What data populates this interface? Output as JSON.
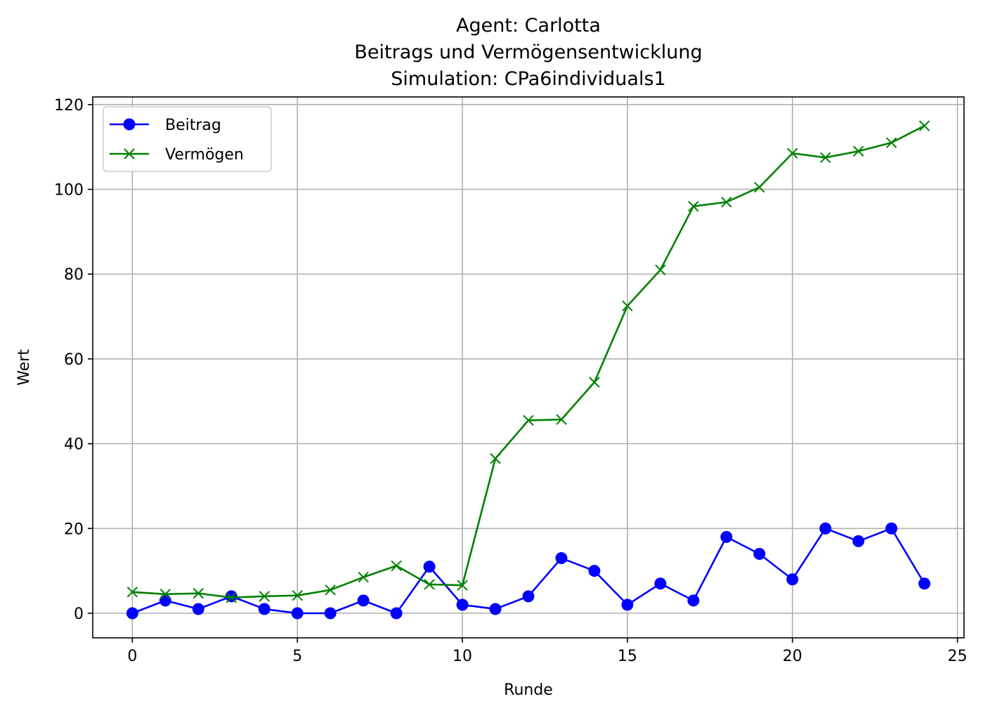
{
  "chart_data": {
    "type": "line",
    "title_lines": [
      "Agent: Carlotta",
      "Beitrags und Vermögensentwicklung",
      "Simulation: CPa6individuals1"
    ],
    "xlabel": "Runde",
    "ylabel": "Wert",
    "xlim": [
      -1.2,
      25.2
    ],
    "ylim": [
      -5.8,
      121.8
    ],
    "xticks": [
      0,
      5,
      10,
      15,
      20,
      25
    ],
    "yticks": [
      0,
      20,
      40,
      60,
      80,
      100,
      120
    ],
    "grid": true,
    "legend_position": "top-left",
    "x": [
      0,
      1,
      2,
      3,
      4,
      5,
      6,
      7,
      8,
      9,
      10,
      11,
      12,
      13,
      14,
      15,
      16,
      17,
      18,
      19,
      20,
      21,
      22,
      23,
      24
    ],
    "series": [
      {
        "name": "Beitrag",
        "color": "#0000ff",
        "marker": "circle",
        "values": [
          0,
          3,
          1,
          4,
          1,
          0,
          0,
          3,
          0,
          11,
          2,
          1,
          4,
          13,
          10,
          2,
          7,
          3,
          18,
          14,
          8,
          20,
          17,
          20,
          7
        ]
      },
      {
        "name": "Vermögen",
        "color": "#008000",
        "marker": "x",
        "values": [
          5,
          4.5,
          4.7,
          3.7,
          4,
          4.2,
          5.5,
          8.5,
          11.2,
          6.8,
          6.6,
          36.5,
          45.5,
          45.7,
          54.5,
          72.5,
          81,
          96,
          97,
          100.5,
          108.5,
          107.5,
          109,
          111,
          115
        ]
      }
    ]
  }
}
